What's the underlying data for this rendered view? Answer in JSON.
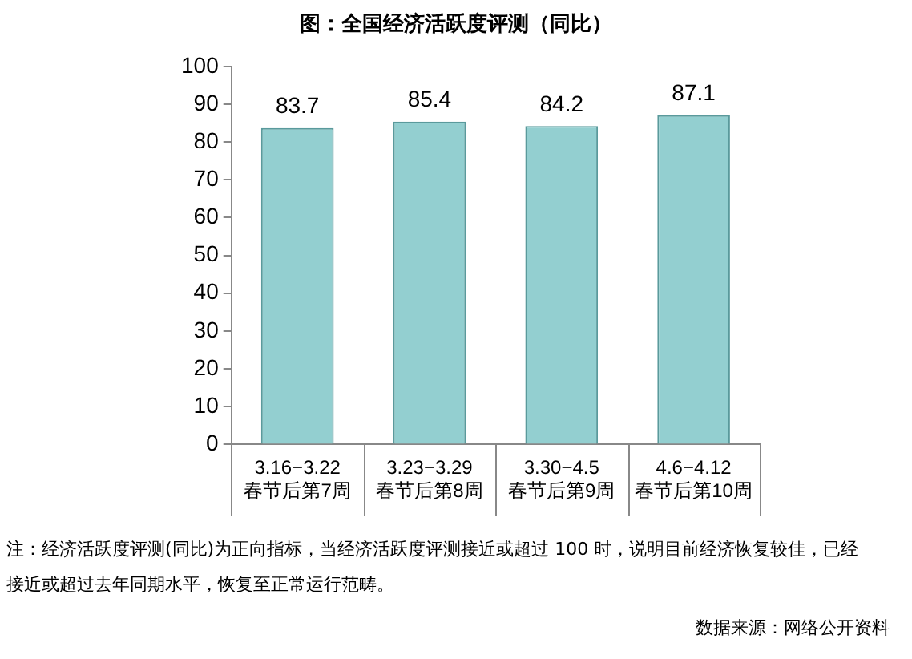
{
  "chart_data": {
    "type": "bar",
    "title": "图：全国经济活跃度评测（同比）",
    "categories": [
      "3.16−3.22\n春节后第7周",
      "3.23−3.29\n春节后第8周",
      "3.30−4.5\n春节后第9周",
      "4.6−4.12\n春节后第10周"
    ],
    "values": [
      83.7,
      85.4,
      84.2,
      87.1
    ],
    "color": "#93cfd0",
    "ylim": [
      0,
      100
    ],
    "yticks": [
      0,
      10,
      20,
      30,
      40,
      50,
      60,
      70,
      80,
      90,
      100
    ],
    "grid": false,
    "data_labels": true,
    "legend": false,
    "annotations": [
      "注：经济活跃度评测(同比)为正向指标，当经济活跃度评测接近或超过 100 时，说明目前经济恢复较佳，已经接近或超过去年同期水平，恢复至正常运行范畴。",
      "数据来源：网络公开资料"
    ]
  }
}
